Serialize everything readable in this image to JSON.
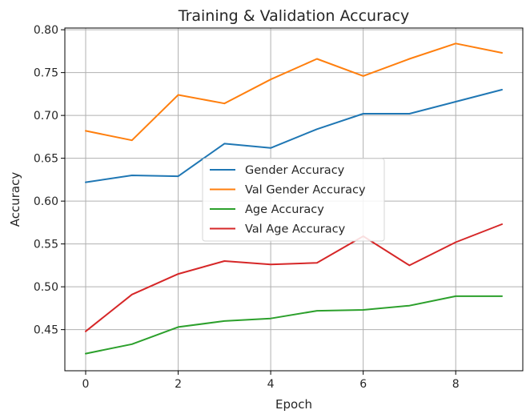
{
  "chart_data": {
    "type": "line",
    "title": "Training & Validation Accuracy",
    "xlabel": "Epoch",
    "ylabel": "Accuracy",
    "xlim": [
      -0.45,
      9.45
    ],
    "ylim": [
      0.402,
      0.802
    ],
    "x": [
      0,
      1,
      2,
      3,
      4,
      5,
      6,
      7,
      8,
      9
    ],
    "xticks": [
      0,
      2,
      4,
      6,
      8
    ],
    "xtick_labels": [
      "0",
      "2",
      "4",
      "6",
      "8"
    ],
    "yticks": [
      0.45,
      0.5,
      0.55,
      0.6,
      0.65,
      0.7,
      0.75,
      0.8
    ],
    "ytick_labels": [
      "0.45",
      "0.50",
      "0.55",
      "0.60",
      "0.65",
      "0.70",
      "0.75",
      "0.80"
    ],
    "grid": true,
    "legend_position": "center",
    "series": [
      {
        "name": "Gender Accuracy",
        "color": "#1f77b4",
        "values": [
          0.622,
          0.63,
          0.629,
          0.667,
          0.662,
          0.684,
          0.702,
          0.702,
          0.716,
          0.73
        ]
      },
      {
        "name": "Val Gender Accuracy",
        "color": "#ff7f0e",
        "values": [
          0.682,
          0.671,
          0.724,
          0.714,
          0.742,
          0.766,
          0.746,
          0.766,
          0.784,
          0.773
        ]
      },
      {
        "name": "Age Accuracy",
        "color": "#2ca02c",
        "values": [
          0.422,
          0.433,
          0.453,
          0.46,
          0.463,
          0.472,
          0.473,
          0.478,
          0.489,
          0.489
        ]
      },
      {
        "name": "Val Age Accuracy",
        "color": "#d62728",
        "values": [
          0.448,
          0.491,
          0.515,
          0.53,
          0.526,
          0.528,
          0.559,
          0.525,
          0.552,
          0.573
        ]
      }
    ]
  }
}
